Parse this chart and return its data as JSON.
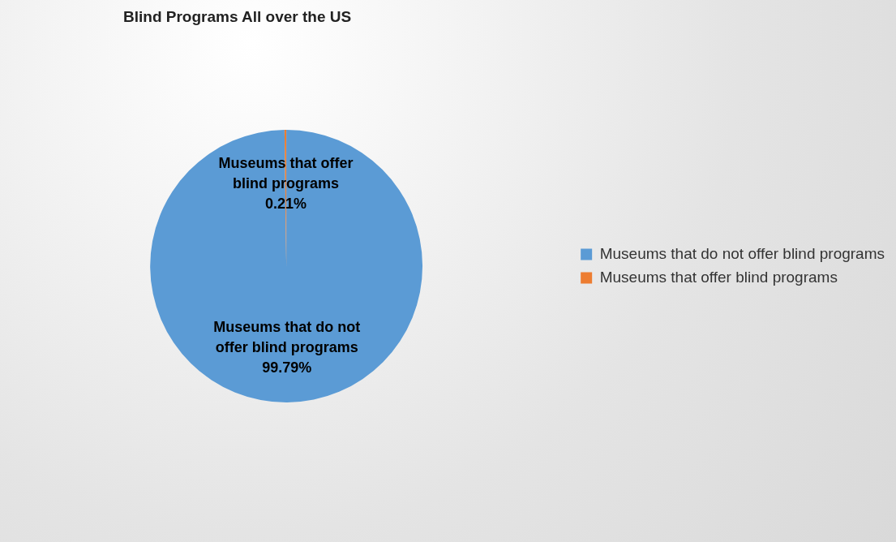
{
  "chart_data": {
    "type": "pie",
    "title": "Blind Programs All over the US",
    "categories": [
      "Museums that do not offer blind programs",
      "Museums that offer blind programs"
    ],
    "values": [
      99.79,
      0.21
    ],
    "colors": [
      "#5b9bd5",
      "#ed7d31"
    ],
    "value_labels": [
      "99.79%",
      "0.21%"
    ],
    "legend": "right"
  }
}
